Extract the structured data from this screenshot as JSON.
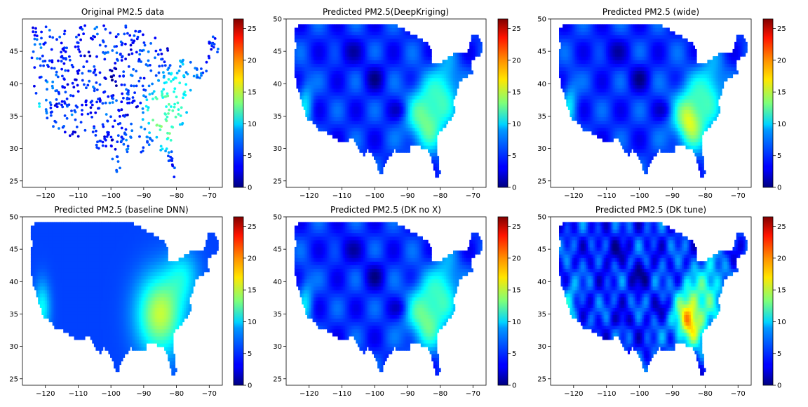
{
  "chart_data": [
    {
      "type": "scatter",
      "title": "Original PM2.5 data",
      "xlabel": "",
      "ylabel": "",
      "xlim": [
        -127,
        -66
      ],
      "ylim": [
        24,
        50
      ],
      "xticks": [
        -120,
        -110,
        -100,
        -90,
        -80,
        -70
      ],
      "yticks": [
        25,
        30,
        35,
        40,
        45
      ],
      "colorbar": {
        "vmin": 0,
        "vmax": 26.5,
        "ticks": [
          0,
          5,
          10,
          15,
          20,
          25
        ],
        "colormap": "jet"
      },
      "grid": false
    },
    {
      "type": "heatmap",
      "title": "Predicted PM2.5(DeepKriging)",
      "xlabel": "",
      "ylabel": "",
      "xlim": [
        -127,
        -66
      ],
      "ylim": [
        24,
        50
      ],
      "xticks": [
        -120,
        -110,
        -100,
        -90,
        -80,
        -70
      ],
      "yticks": [
        25,
        30,
        35,
        40,
        45,
        50
      ],
      "colorbar": {
        "vmin": 0,
        "vmax": 26.5,
        "ticks": [
          0,
          5,
          10,
          15,
          20,
          25
        ],
        "colormap": "jet"
      },
      "grid": false
    },
    {
      "type": "heatmap",
      "title": "Predicted PM2.5 (wide)",
      "xlabel": "",
      "ylabel": "",
      "xlim": [
        -127,
        -66
      ],
      "ylim": [
        24,
        50
      ],
      "xticks": [
        -120,
        -110,
        -100,
        -90,
        -80,
        -70
      ],
      "yticks": [
        25,
        30,
        35,
        40,
        45,
        50
      ],
      "colorbar": {
        "vmin": 0,
        "vmax": 26.5,
        "ticks": [
          0,
          5,
          10,
          15,
          20,
          25
        ],
        "colormap": "jet"
      },
      "grid": false
    },
    {
      "type": "heatmap",
      "title": "Predicted PM2.5 (baseline DNN)",
      "xlabel": "",
      "ylabel": "",
      "xlim": [
        -127,
        -66
      ],
      "ylim": [
        24,
        50
      ],
      "xticks": [
        -120,
        -110,
        -100,
        -90,
        -80,
        -70
      ],
      "yticks": [
        25,
        30,
        35,
        40,
        45,
        50
      ],
      "colorbar": {
        "vmin": 0,
        "vmax": 26.5,
        "ticks": [
          0,
          5,
          10,
          15,
          20,
          25
        ],
        "colormap": "jet"
      },
      "grid": false
    },
    {
      "type": "heatmap",
      "title": "Predicted PM2.5 (DK no X)",
      "xlabel": "",
      "ylabel": "",
      "xlim": [
        -127,
        -66
      ],
      "ylim": [
        24,
        50
      ],
      "xticks": [
        -120,
        -110,
        -100,
        -90,
        -80,
        -70
      ],
      "yticks": [
        25,
        30,
        35,
        40,
        45,
        50
      ],
      "colorbar": {
        "vmin": 0,
        "vmax": 26.5,
        "ticks": [
          0,
          5,
          10,
          15,
          20,
          25
        ],
        "colormap": "jet"
      },
      "grid": false
    },
    {
      "type": "heatmap",
      "title": "Predicted PM2.5 (DK tune)",
      "xlabel": "",
      "ylabel": "",
      "xlim": [
        -127,
        -66
      ],
      "ylim": [
        24,
        50
      ],
      "xticks": [
        -120,
        -110,
        -100,
        -90,
        -80,
        -70
      ],
      "yticks": [
        25,
        30,
        35,
        40,
        45,
        50
      ],
      "colorbar": {
        "vmin": 0,
        "vmax": 26.5,
        "ticks": [
          0,
          5,
          10,
          15,
          20,
          25
        ],
        "colormap": "jet"
      },
      "grid": false
    }
  ]
}
